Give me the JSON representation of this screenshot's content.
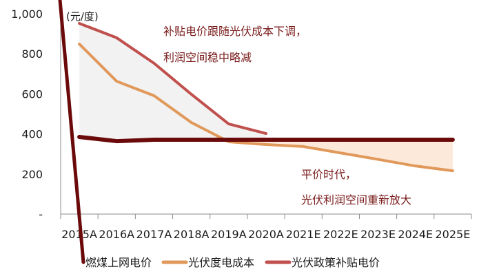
{
  "chart_data": {
    "type": "line",
    "title": "",
    "unit_label": "(元/度)",
    "xlabel": "",
    "ylabel": "元/度",
    "ylim": [
      0,
      1000
    ],
    "yticks": [
      "-",
      "200",
      "400",
      "600",
      "800",
      "1,000"
    ],
    "ytick_values": [
      0,
      200,
      400,
      600,
      800,
      1000
    ],
    "grid": false,
    "legend_position": "bottom",
    "categories": [
      "2015A",
      "2016A",
      "2017A",
      "2018A",
      "2019A",
      "2020A",
      "2021E",
      "2022E",
      "2023E",
      "2024E",
      "2025E"
    ],
    "series": [
      {
        "name": "燃煤上网电价",
        "color": "#6b0a0a",
        "values": [
          385,
          364,
          371,
          371,
          371,
          371,
          371,
          371,
          371,
          371,
          371
        ]
      },
      {
        "name": "光伏度电成本",
        "color": "#e0995a",
        "values": [
          849,
          663,
          591,
          457,
          361,
          347,
          337,
          305,
          273,
          240,
          216
        ]
      },
      {
        "name": "光伏政策补贴电价",
        "color": "#c0504d",
        "values": [
          952,
          880,
          753,
          598,
          450,
          402,
          null,
          null,
          null,
          null,
          null
        ]
      }
    ],
    "shaded_areas": [
      {
        "between": [
          "光伏政策补贴电价",
          "光伏度电成本"
        ],
        "range": [
          "2015A",
          "2020A"
        ],
        "color": "#f2f2f2"
      },
      {
        "between": [
          "燃煤上网电价",
          "光伏度电成本"
        ],
        "range": [
          "2020A",
          "2025E"
        ],
        "color": "#fde9d9"
      }
    ],
    "annotations": [
      {
        "lines": [
          "补贴电价跟随光伏成本下调，",
          "利润空间稳中略减"
        ],
        "color": "#7a1c1c"
      },
      {
        "lines": [
          "平价时代，",
          "光伏利润空间重新放大"
        ],
        "color": "#7a1c1c"
      }
    ]
  },
  "legend": {
    "items": [
      {
        "label": "燃煤上网电价",
        "color": "#6b0a0a"
      },
      {
        "label": "光伏度电成本",
        "color": "#e0995a"
      },
      {
        "label": "光伏政策补贴电价",
        "color": "#c0504d"
      }
    ]
  }
}
